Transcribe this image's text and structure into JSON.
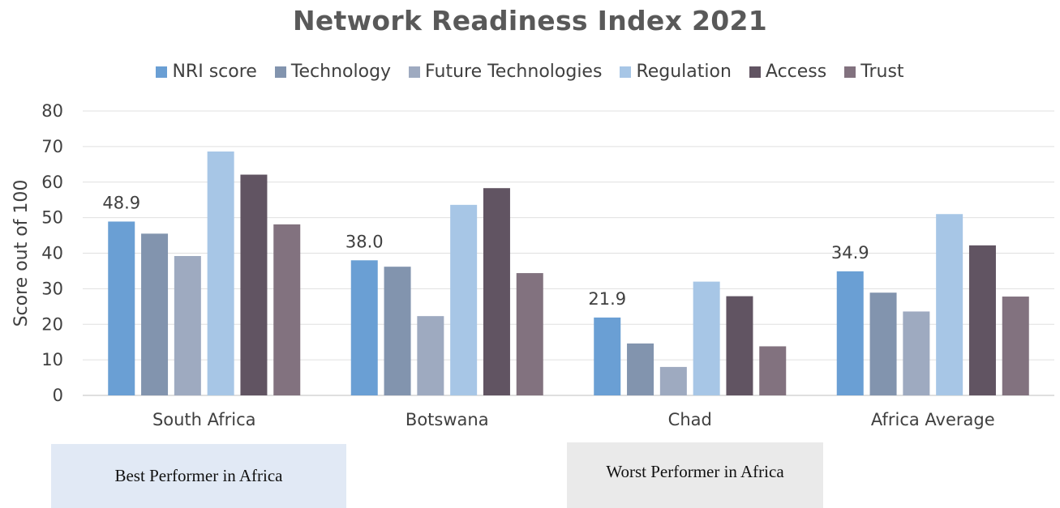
{
  "chart_data": {
    "type": "bar",
    "title": "Network Readiness Index 2021",
    "ylabel": "Score out of 100",
    "xlabel": "",
    "ylim": [
      0,
      80
    ],
    "yticks": [
      0,
      10,
      20,
      30,
      40,
      50,
      60,
      70,
      80
    ],
    "grid": true,
    "legend_position": "top",
    "categories": [
      "South Africa",
      "Botswana",
      "Chad",
      "Africa Average"
    ],
    "series": [
      {
        "name": "NRI score",
        "color": "#6a9fd4",
        "values": [
          48.9,
          38.0,
          21.9,
          34.9
        ]
      },
      {
        "name": "Technology",
        "color": "#8294ae",
        "values": [
          45.5,
          36.2,
          14.6,
          28.9
        ]
      },
      {
        "name": "Future Technologies",
        "color": "#9eaac0",
        "values": [
          39.2,
          22.3,
          8.0,
          23.6
        ]
      },
      {
        "name": "Regulation",
        "color": "#a7c6e6",
        "values": [
          68.6,
          53.6,
          32.0,
          51.0
        ]
      },
      {
        "name": "Access",
        "color": "#615462",
        "values": [
          62.1,
          58.3,
          27.9,
          42.2
        ]
      },
      {
        "name": "Trust",
        "color": "#82727f",
        "values": [
          48.1,
          34.4,
          13.8,
          27.8
        ]
      }
    ],
    "data_labels": [
      "48.9",
      "38.0",
      "21.9",
      "34.9"
    ],
    "annotations": [
      "Best Performer in Africa",
      "Worst Performer in Africa"
    ]
  }
}
